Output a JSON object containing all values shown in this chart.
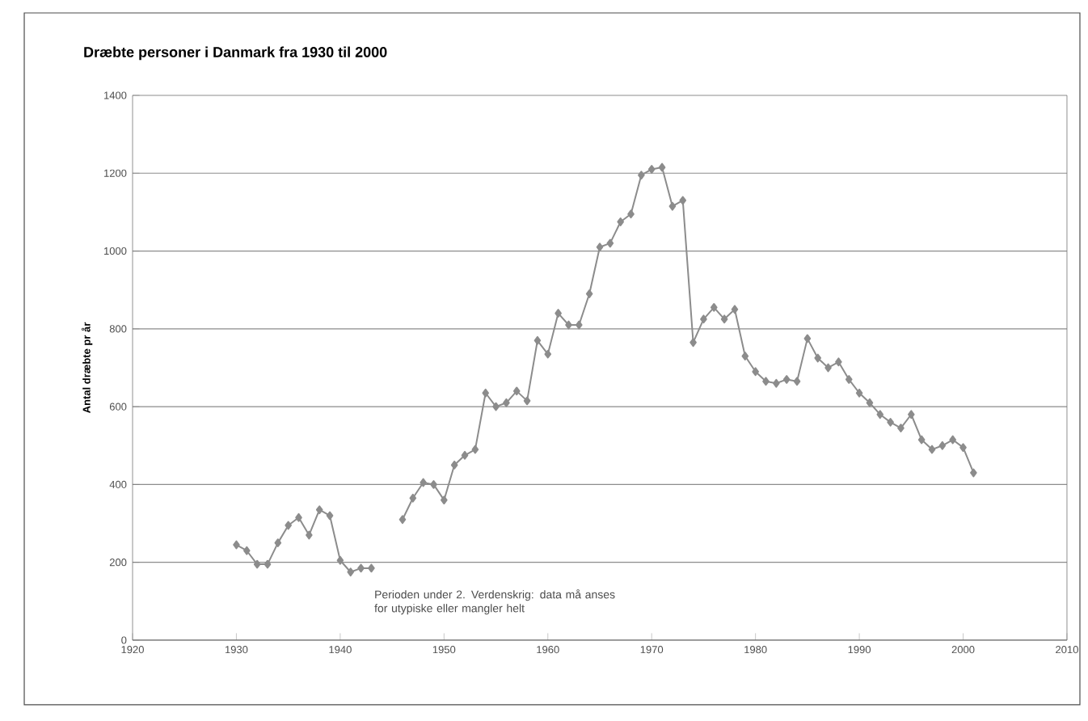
{
  "chart_data": {
    "type": "line",
    "title": "Dræbte personer i Danmark fra 1930 til 2000",
    "ylabel": "Antal dræbte pr år",
    "annotations": [
      "Perioden under 2. Verdenskrig: data må anses for utypiske eller mangler helt"
    ],
    "x": [
      1930,
      1931,
      1932,
      1933,
      1934,
      1935,
      1936,
      1937,
      1938,
      1939,
      1940,
      1941,
      1942,
      1943,
      1944,
      1945,
      1946,
      1947,
      1948,
      1949,
      1950,
      1951,
      1952,
      1953,
      1954,
      1955,
      1956,
      1957,
      1958,
      1959,
      1960,
      1961,
      1962,
      1963,
      1964,
      1965,
      1966,
      1967,
      1968,
      1969,
      1970,
      1971,
      1972,
      1973,
      1974,
      1975,
      1976,
      1977,
      1978,
      1979,
      1980,
      1981,
      1982,
      1983,
      1984,
      1985,
      1986,
      1987,
      1988,
      1989,
      1990,
      1991,
      1992,
      1993,
      1994,
      1995,
      1996,
      1997,
      1998,
      1999,
      2000,
      2001
    ],
    "series": [
      {
        "color": "#8c8c8c",
        "values": [
          245,
          230,
          195,
          195,
          250,
          295,
          315,
          270,
          335,
          320,
          205,
          175,
          185,
          185,
          null,
          null,
          310,
          365,
          405,
          400,
          360,
          450,
          475,
          490,
          635,
          600,
          610,
          640,
          615,
          770,
          735,
          840,
          810,
          810,
          890,
          1010,
          1020,
          1075,
          1095,
          1195,
          1210,
          1215,
          1115,
          1130,
          765,
          825,
          855,
          825,
          850,
          730,
          690,
          665,
          660,
          670,
          665,
          775,
          725,
          700,
          715,
          670,
          635,
          610,
          580,
          560,
          545,
          580,
          515,
          490,
          500,
          515,
          495,
          430
        ]
      }
    ],
    "xlim": [
      1920,
      2010
    ],
    "xticks": [
      1920,
      1930,
      1940,
      1950,
      1960,
      1970,
      1980,
      1990,
      2000,
      2010
    ],
    "ylim": [
      0,
      1400
    ],
    "yticks": [
      0,
      200,
      400,
      600,
      800,
      1000,
      1200,
      1400
    ],
    "grid": "y",
    "marker": "diamond",
    "line_style": "solid"
  }
}
